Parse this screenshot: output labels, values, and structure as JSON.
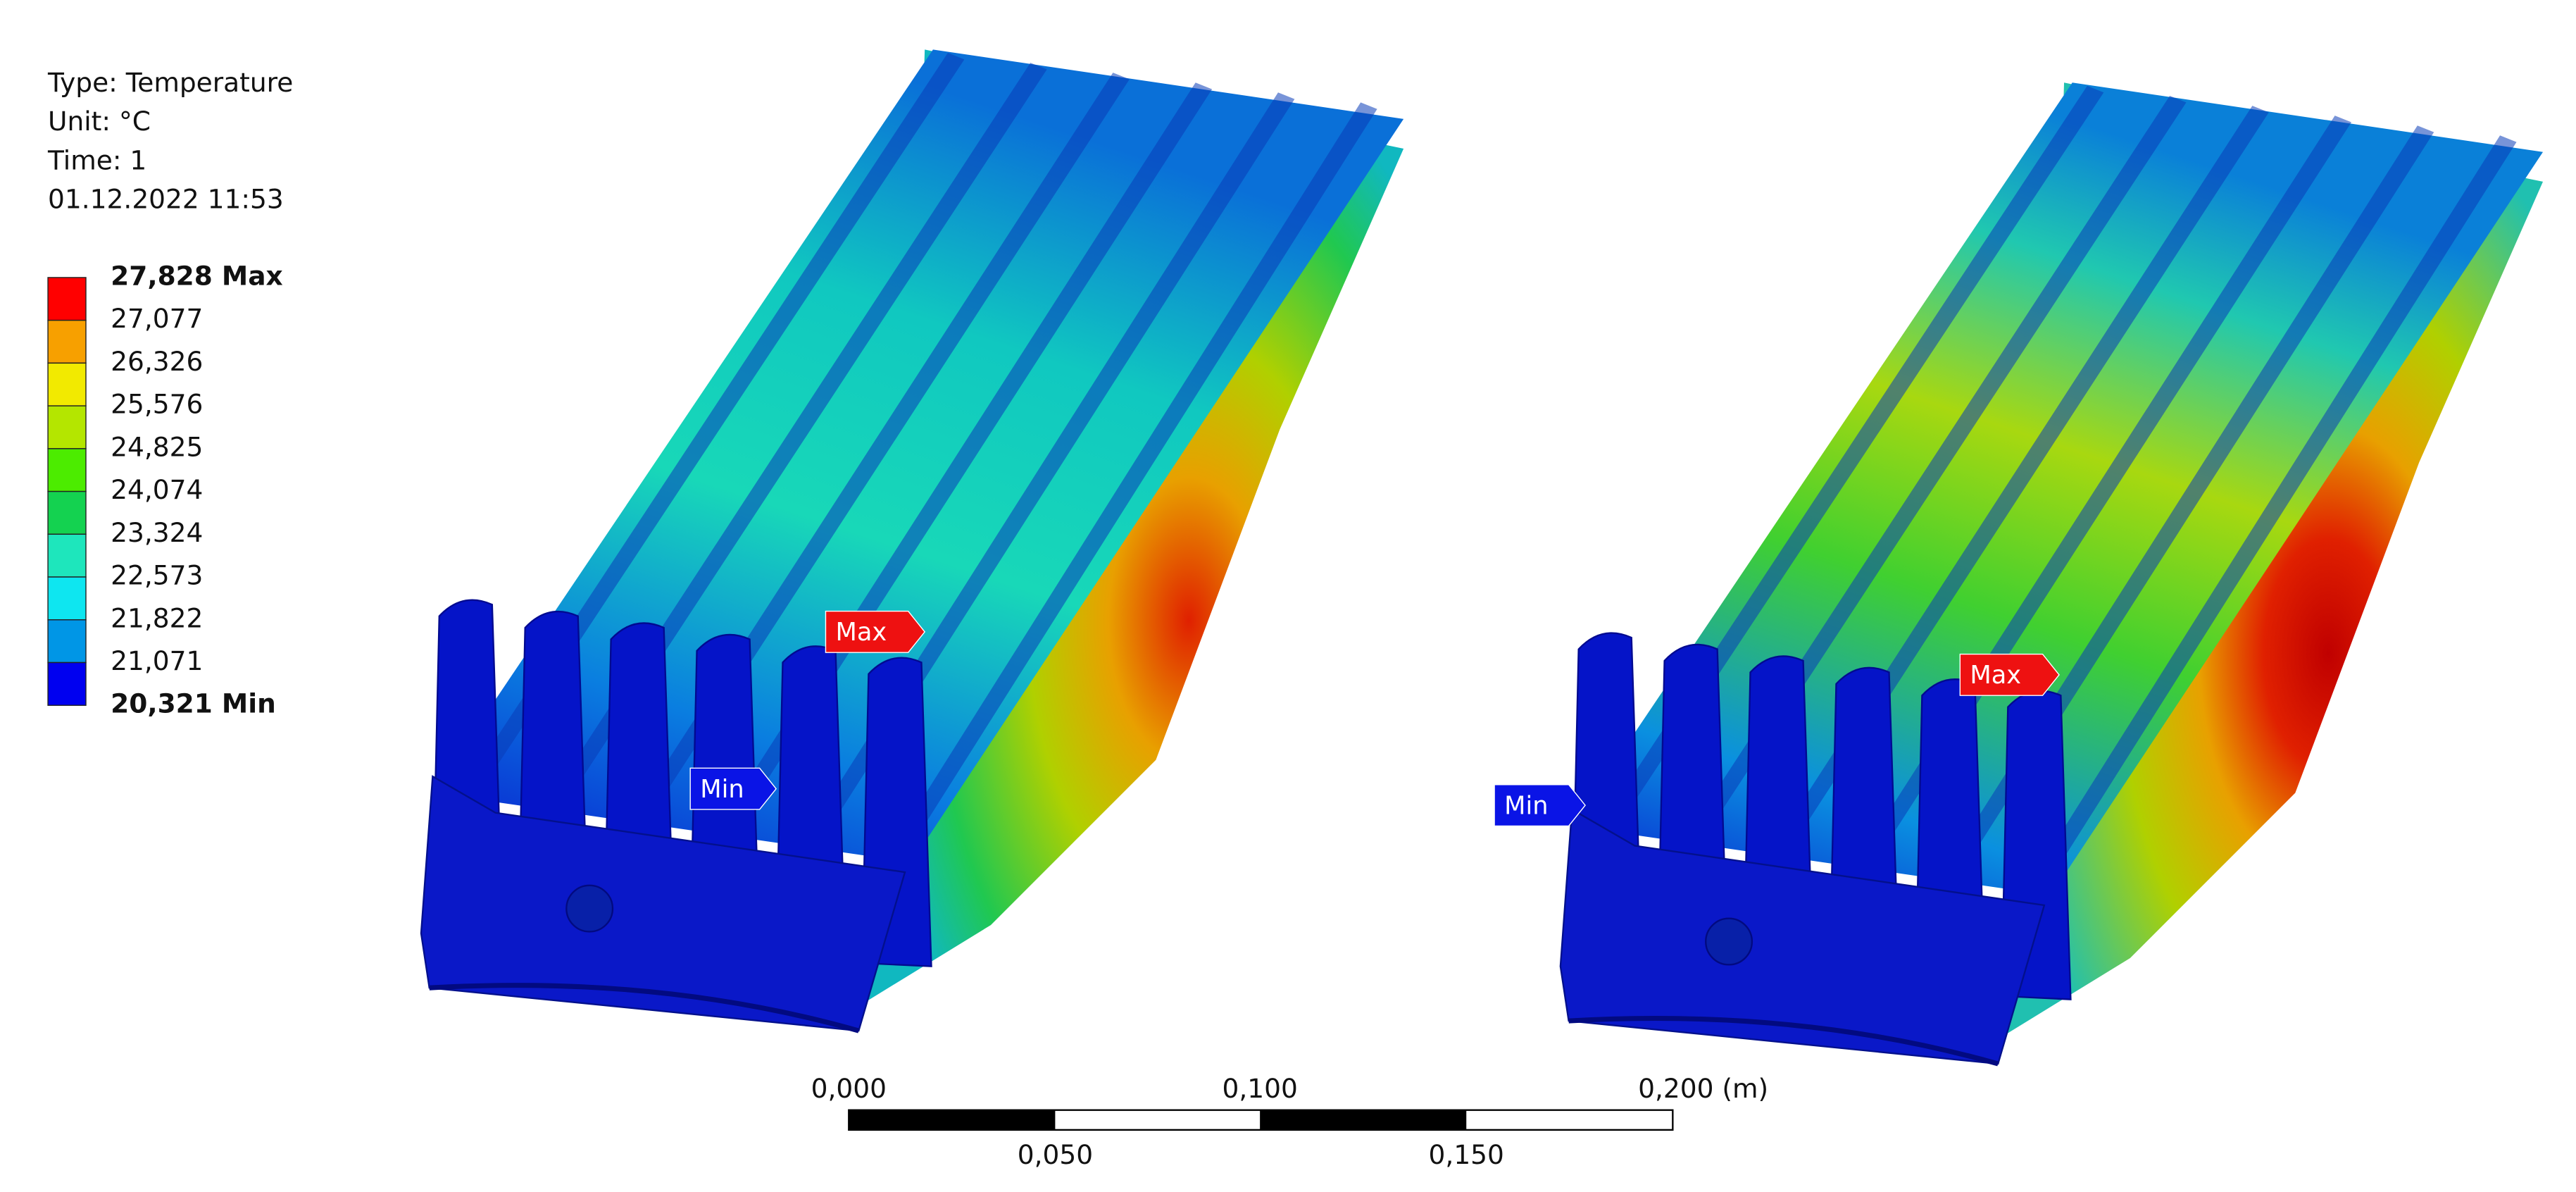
{
  "legend": {
    "info": [
      "Type: Temperature",
      "Unit: °C",
      "Time: 1",
      "01.12.2022 11:53"
    ],
    "levels": [
      "27,828 Max",
      "27,077",
      "26,326",
      "25,576",
      "24,825",
      "24,074",
      "23,324",
      "22,573",
      "21,822",
      "21,071",
      "20,321 Min"
    ],
    "colors": [
      "#ff0000",
      "#f7a000",
      "#f2ea00",
      "#b4e600",
      "#4cec00",
      "#14d250",
      "#1ee6bc",
      "#0ee6f0",
      "#0096e6",
      "#0000f0"
    ]
  },
  "probes": [
    {
      "label": "Max",
      "color": "#ee1111"
    },
    {
      "label": "Min",
      "color": "#0a14e6"
    },
    {
      "label": "Max",
      "color": "#ee1111"
    },
    {
      "label": "Min",
      "color": "#0a14e6"
    }
  ],
  "scale_bar": {
    "top_labels": [
      "0,000",
      "0,100",
      "0,200 (m)"
    ],
    "bottom_labels": [
      "0,050",
      "0,150"
    ]
  }
}
